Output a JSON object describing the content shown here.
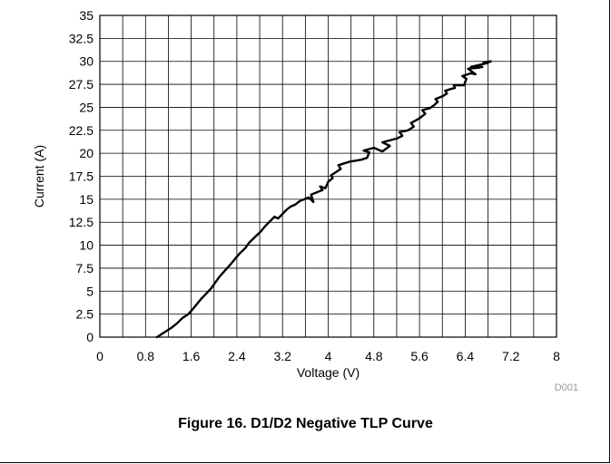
{
  "chart_data": {
    "type": "line",
    "title": "",
    "xlabel": "Voltage (V)",
    "ylabel": "Current (A)",
    "xlim": [
      0,
      8
    ],
    "ylim": [
      0,
      35
    ],
    "xticks": [
      "0",
      "0.8",
      "1.6",
      "2.4",
      "3.2",
      "4",
      "4.8",
      "5.6",
      "6.4",
      "7.2",
      "8"
    ],
    "yticks": [
      "0",
      "2.5",
      "5",
      "7.5",
      "10",
      "12.5",
      "15",
      "17.5",
      "20",
      "22.5",
      "25",
      "27.5",
      "30",
      "32.5",
      "35"
    ],
    "grid": true,
    "series": [
      {
        "x": [
          1.0,
          1.05,
          1.15,
          1.25,
          1.35,
          1.45,
          1.55,
          1.62,
          1.7,
          1.78,
          1.86,
          1.95,
          2.03,
          2.1,
          2.2,
          2.3,
          2.38,
          2.45,
          2.55,
          2.62,
          2.72,
          2.82,
          2.9,
          2.98,
          3.06,
          3.12,
          3.2,
          3.26,
          3.34,
          3.42,
          3.5,
          3.58,
          3.66,
          3.74,
          3.7,
          3.82,
          3.9,
          3.86,
          3.95,
          4.0,
          4.08,
          4.05,
          4.15,
          4.22,
          4.18,
          4.28,
          4.38,
          4.48,
          4.58,
          4.68,
          4.72,
          4.62,
          4.8,
          4.95,
          5.08,
          4.95,
          5.2,
          5.3,
          5.25,
          5.4,
          5.5,
          5.45,
          5.6,
          5.7,
          5.65,
          5.78,
          5.85,
          5.92,
          5.88,
          6.0,
          6.08,
          6.05,
          6.15,
          6.22,
          6.2,
          6.38,
          6.42,
          6.35,
          6.5,
          6.58,
          6.45,
          6.62,
          6.7,
          6.5,
          6.78,
          6.85,
          6.72
        ],
        "y": [
          0.0,
          0.2,
          0.6,
          1.0,
          1.5,
          2.1,
          2.5,
          3.0,
          3.6,
          4.2,
          4.7,
          5.3,
          6.0,
          6.6,
          7.3,
          8.0,
          8.6,
          9.1,
          9.7,
          10.3,
          10.9,
          11.5,
          12.1,
          12.6,
          13.1,
          12.9,
          13.4,
          13.8,
          14.2,
          14.4,
          14.8,
          15.0,
          15.2,
          14.7,
          15.5,
          15.8,
          16.0,
          16.4,
          16.2,
          16.9,
          17.3,
          17.6,
          18.0,
          18.3,
          18.7,
          18.9,
          19.1,
          19.2,
          19.3,
          19.5,
          20.1,
          20.3,
          20.6,
          20.2,
          20.8,
          21.2,
          21.6,
          21.9,
          22.3,
          22.5,
          22.9,
          23.3,
          23.8,
          24.3,
          24.7,
          24.9,
          25.2,
          25.6,
          25.9,
          26.2,
          26.5,
          26.8,
          27.0,
          27.1,
          27.4,
          27.4,
          28.1,
          28.4,
          28.7,
          28.6,
          29.2,
          29.3,
          29.4,
          29.4,
          29.8,
          30.0,
          29.9
        ]
      }
    ]
  },
  "figure_id": "D001",
  "caption": "Figure 16. D1/D2 Negative TLP Curve"
}
